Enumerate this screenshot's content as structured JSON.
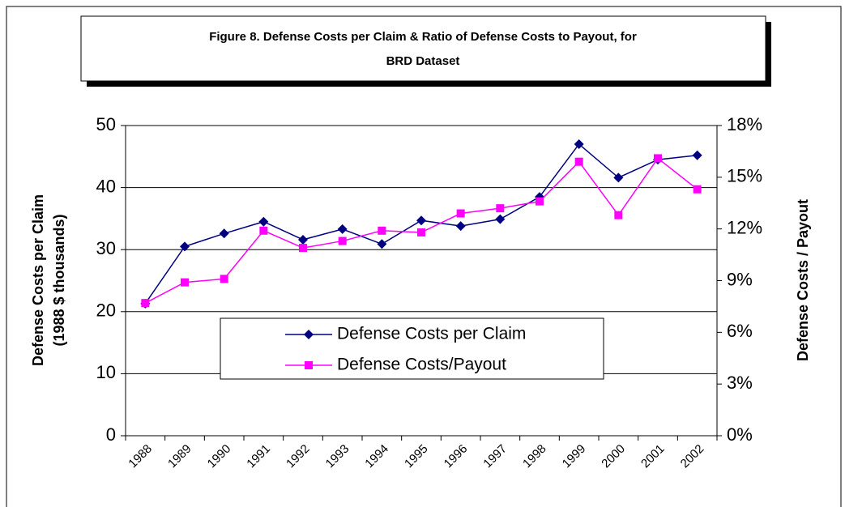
{
  "chart_data": {
    "type": "line",
    "title": [
      "Figure 8.  Defense Costs per Claim & Ratio of Defense Costs to Payout, for",
      "BRD Dataset"
    ],
    "y_label": [
      "Defense Costs per Claim",
      "(1988 $ thousands)"
    ],
    "y2_label": "Defense Costs / Payout",
    "categories": [
      "1988",
      "1989",
      "1990",
      "1991",
      "1992",
      "1993",
      "1994",
      "1995",
      "1996",
      "1997",
      "1998",
      "1999",
      "2000",
      "2001",
      "2002"
    ],
    "series": [
      {
        "name": "Defense Costs per Claim",
        "color": "#000080",
        "marker": "diamond",
        "values": [
          21.3,
          30.5,
          32.6,
          34.5,
          31.6,
          33.3,
          30.9,
          34.7,
          33.8,
          34.9,
          38.5,
          47.0,
          41.6,
          44.5,
          45.2
        ]
      },
      {
        "name": "Defense Costs/Payout",
        "color": "#ff00ff",
        "marker": "square",
        "axis": "y2",
        "values": [
          7.7,
          8.9,
          9.1,
          11.9,
          10.9,
          11.3,
          11.9,
          11.8,
          12.9,
          13.2,
          13.6,
          15.9,
          12.8,
          16.1,
          14.3
        ]
      }
    ],
    "ylim": [
      0,
      50
    ],
    "yticks": [
      0,
      10,
      20,
      30,
      40,
      50
    ],
    "y2lim": [
      0,
      18
    ],
    "y2ticks": [
      {
        "value": 0,
        "label": "0%"
      },
      {
        "value": 3,
        "label": "3%"
      },
      {
        "value": 6,
        "label": "6%"
      },
      {
        "value": 9,
        "label": "9%"
      },
      {
        "value": 12,
        "label": "12%"
      },
      {
        "value": 15,
        "label": "15%"
      },
      {
        "value": 18,
        "label": "18%"
      }
    ],
    "grid": true
  }
}
